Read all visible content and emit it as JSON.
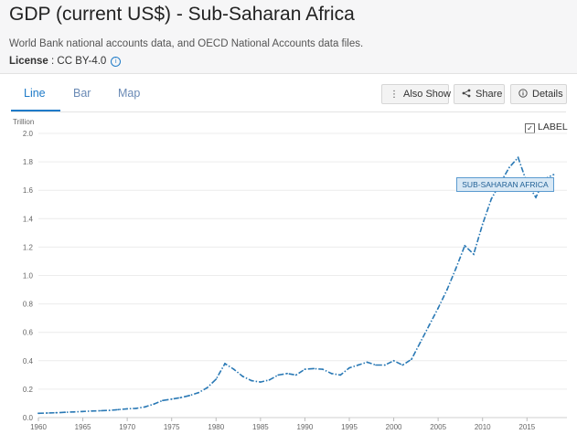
{
  "header": {
    "title": "GDP (current US$) - Sub-Saharan Africa",
    "source": "World Bank national accounts data, and OECD National Accounts data files.",
    "license_label": "License",
    "license_value": " : CC BY-4.0"
  },
  "tabs": [
    {
      "label": "Line",
      "active": true
    },
    {
      "label": "Bar",
      "active": false
    },
    {
      "label": "Map",
      "active": false
    }
  ],
  "toolbar": {
    "also_show": "Also Show",
    "share": "Share",
    "details": "Details"
  },
  "legend": {
    "checked": true,
    "label": "LABEL"
  },
  "colors": {
    "accent": "#1f7bc8",
    "line": "#2a79b5",
    "background": "#f6f6f7"
  },
  "chart_data": {
    "type": "line",
    "unit_label": "Trillion",
    "ylim": [
      0,
      2.0
    ],
    "yticks": [
      "0.0",
      "0.2",
      "0.4",
      "0.6",
      "0.8",
      "1.0",
      "1.2",
      "1.4",
      "1.6",
      "1.8",
      "2.0"
    ],
    "xticks": [
      "1960",
      "1965",
      "1970",
      "1975",
      "1980",
      "1985",
      "1990",
      "1995",
      "2000",
      "2005",
      "2010",
      "2015"
    ],
    "series": [
      {
        "name": "SUB-SAHARAN AFRICA",
        "x": [
          1960,
          1961,
          1962,
          1963,
          1964,
          1965,
          1966,
          1967,
          1968,
          1969,
          1970,
          1971,
          1972,
          1973,
          1974,
          1975,
          1976,
          1977,
          1978,
          1979,
          1980,
          1981,
          1982,
          1983,
          1984,
          1985,
          1986,
          1987,
          1988,
          1989,
          1990,
          1991,
          1992,
          1993,
          1994,
          1995,
          1996,
          1997,
          1998,
          1999,
          2000,
          2001,
          2002,
          2003,
          2004,
          2005,
          2006,
          2007,
          2008,
          2009,
          2010,
          2011,
          2012,
          2013,
          2014,
          2015,
          2016,
          2017,
          2018
        ],
        "values": [
          0.03,
          0.032,
          0.034,
          0.037,
          0.04,
          0.043,
          0.046,
          0.048,
          0.051,
          0.056,
          0.062,
          0.065,
          0.075,
          0.095,
          0.12,
          0.13,
          0.14,
          0.155,
          0.175,
          0.21,
          0.27,
          0.38,
          0.34,
          0.29,
          0.26,
          0.25,
          0.265,
          0.3,
          0.31,
          0.3,
          0.34,
          0.345,
          0.34,
          0.31,
          0.3,
          0.35,
          0.37,
          0.39,
          0.37,
          0.37,
          0.4,
          0.37,
          0.41,
          0.53,
          0.65,
          0.77,
          0.9,
          1.05,
          1.21,
          1.15,
          1.36,
          1.54,
          1.65,
          1.76,
          1.83,
          1.65,
          1.55,
          1.68,
          1.71
        ]
      }
    ]
  }
}
